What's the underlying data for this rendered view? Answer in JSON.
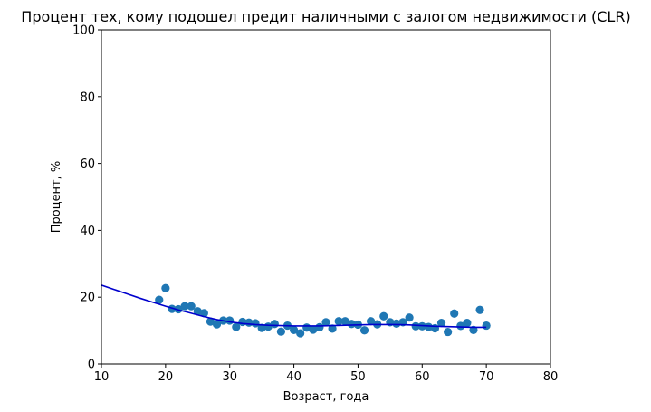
{
  "chart_data": {
    "type": "scatter",
    "title": "Процент тех, кому подошел предит наличными с залогом недвижимости (CLR)",
    "xlabel": "Возраст, года",
    "ylabel": "Процент, %",
    "xlim": [
      10,
      80
    ],
    "ylim": [
      0,
      100
    ],
    "xticks": [
      "10",
      "20",
      "30",
      "40",
      "50",
      "60",
      "70",
      "80"
    ],
    "yticks": [
      "0",
      "20",
      "40",
      "60",
      "80",
      "100"
    ],
    "grid": false,
    "legend": "none",
    "colors": {
      "points": "#1f77b4",
      "trend": "#0000cd"
    },
    "series": [
      {
        "kind": "scatter",
        "x": [
          19,
          20,
          21,
          22,
          23,
          24,
          25,
          26,
          27,
          28,
          29,
          30,
          31,
          32,
          33,
          34,
          35,
          36,
          37,
          38,
          39,
          40,
          41,
          42,
          43,
          44,
          45,
          46,
          47,
          48,
          49,
          50,
          51,
          52,
          53,
          54,
          55,
          56,
          57,
          58,
          59,
          60,
          61,
          62,
          63,
          64,
          65,
          66,
          67,
          68,
          69,
          70
        ],
        "y": [
          19.2,
          22.7,
          16.5,
          16.4,
          17.3,
          17.3,
          15.8,
          15.2,
          12.7,
          11.9,
          13.0,
          13.0,
          11.1,
          12.6,
          12.4,
          12.2,
          10.8,
          11.2,
          12.0,
          9.7,
          11.5,
          10.2,
          9.2,
          10.9,
          10.3,
          11.0,
          12.5,
          10.6,
          12.8,
          12.8,
          12.0,
          11.8,
          10.1,
          12.8,
          11.9,
          14.3,
          12.5,
          12.1,
          12.5,
          13.9,
          11.3,
          11.3,
          11.1,
          10.7,
          12.3,
          9.6,
          15.1,
          11.4,
          12.3,
          10.2,
          16.2,
          11.5
        ]
      },
      {
        "kind": "line",
        "x": [
          10,
          12,
          14,
          16,
          18,
          20,
          22,
          24,
          26,
          28,
          30,
          32,
          34,
          36,
          38,
          40,
          42,
          44,
          46,
          48,
          50,
          52,
          54,
          56,
          58,
          60,
          62,
          64,
          66,
          68,
          70
        ],
        "y": [
          23.6,
          22.3,
          21.0,
          19.7,
          18.5,
          17.3,
          16.2,
          15.2,
          14.2,
          13.3,
          12.6,
          12.1,
          11.8,
          11.6,
          11.5,
          11.4,
          11.4,
          11.4,
          11.5,
          11.6,
          11.7,
          11.8,
          11.8,
          11.8,
          11.7,
          11.5,
          11.3,
          11.2,
          11.1,
          11.0,
          11.0
        ]
      }
    ]
  }
}
